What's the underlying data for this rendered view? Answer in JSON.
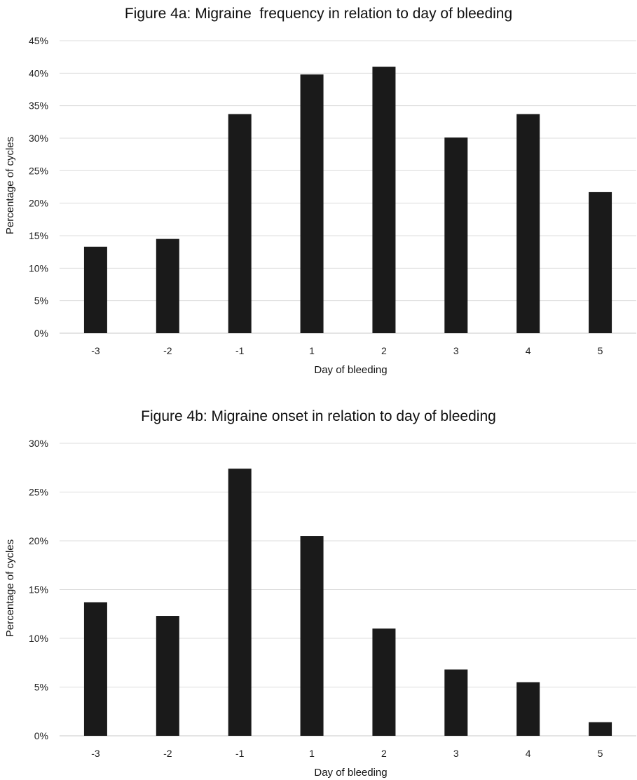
{
  "chart_data": [
    {
      "type": "bar",
      "title": "Figure 4a: Migraine  frequency in relation to day of bleeding",
      "xlabel": "Day of bleeding",
      "ylabel": "Percentage of cycles",
      "categories": [
        "-3",
        "-2",
        "-1",
        "1",
        "2",
        "3",
        "4",
        "5"
      ],
      "values": [
        13.3,
        14.5,
        33.7,
        39.8,
        41.0,
        30.1,
        33.7,
        21.7
      ],
      "ylim": [
        0,
        45
      ],
      "yticks": [
        "0%",
        "5%",
        "10%",
        "15%",
        "20%",
        "25%",
        "30%",
        "35%",
        "40%",
        "45%"
      ],
      "grid": true,
      "bar_color": "#1a1a1a"
    },
    {
      "type": "bar",
      "title": "Figure 4b: Migraine onset in relation to day of bleeding",
      "xlabel": "Day of bleeding",
      "ylabel": "Percentage of cycles",
      "categories": [
        "-3",
        "-2",
        "-1",
        "1",
        "2",
        "3",
        "4",
        "5"
      ],
      "values": [
        13.7,
        12.3,
        27.4,
        20.5,
        11.0,
        6.8,
        5.5,
        1.4
      ],
      "ylim": [
        0,
        30
      ],
      "yticks": [
        "0%",
        "5%",
        "10%",
        "15%",
        "20%",
        "25%",
        "30%"
      ],
      "grid": true,
      "bar_color": "#1a1a1a"
    }
  ]
}
